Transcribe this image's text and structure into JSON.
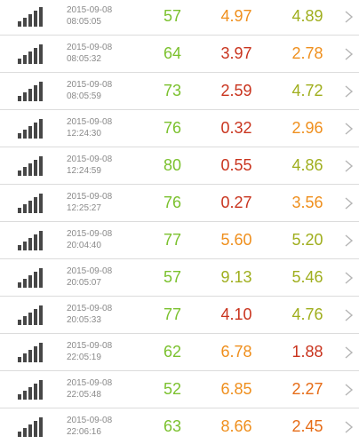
{
  "colors": {
    "green": "#7bc12e",
    "olive": "#9fae1d",
    "orange": "#ef8f1d",
    "dark_orange": "#e66c17",
    "red": "#c9341e"
  },
  "icons": {
    "signal": "signal-strength-icon",
    "chevron": "chevron-right-icon"
  },
  "rows": [
    {
      "date": "2015-09-08",
      "time": "08:05:05",
      "v1": "57",
      "v1_color": "green",
      "v2": "4.97",
      "v2_color": "orange",
      "v3": "4.89",
      "v3_color": "olive"
    },
    {
      "date": "2015-09-08",
      "time": "08:05:32",
      "v1": "64",
      "v1_color": "green",
      "v2": "3.97",
      "v2_color": "red",
      "v3": "2.78",
      "v3_color": "orange"
    },
    {
      "date": "2015-09-08",
      "time": "08:05:59",
      "v1": "73",
      "v1_color": "green",
      "v2": "2.59",
      "v2_color": "red",
      "v3": "4.72",
      "v3_color": "olive"
    },
    {
      "date": "2015-09-08",
      "time": "12:24:30",
      "v1": "76",
      "v1_color": "green",
      "v2": "0.32",
      "v2_color": "red",
      "v3": "2.96",
      "v3_color": "orange"
    },
    {
      "date": "2015-09-08",
      "time": "12:24:59",
      "v1": "80",
      "v1_color": "green",
      "v2": "0.55",
      "v2_color": "red",
      "v3": "4.86",
      "v3_color": "olive"
    },
    {
      "date": "2015-09-08",
      "time": "12:25:27",
      "v1": "76",
      "v1_color": "green",
      "v2": "0.27",
      "v2_color": "red",
      "v3": "3.56",
      "v3_color": "orange"
    },
    {
      "date": "2015-09-08",
      "time": "20:04:40",
      "v1": "77",
      "v1_color": "green",
      "v2": "5.60",
      "v2_color": "orange",
      "v3": "5.20",
      "v3_color": "olive"
    },
    {
      "date": "2015-09-08",
      "time": "20:05:07",
      "v1": "57",
      "v1_color": "green",
      "v2": "9.13",
      "v2_color": "olive",
      "v3": "5.46",
      "v3_color": "olive"
    },
    {
      "date": "2015-09-08",
      "time": "20:05:33",
      "v1": "77",
      "v1_color": "green",
      "v2": "4.10",
      "v2_color": "red",
      "v3": "4.76",
      "v3_color": "olive"
    },
    {
      "date": "2015-09-08",
      "time": "22:05:19",
      "v1": "62",
      "v1_color": "green",
      "v2": "6.78",
      "v2_color": "orange",
      "v3": "1.88",
      "v3_color": "red"
    },
    {
      "date": "2015-09-08",
      "time": "22:05:48",
      "v1": "52",
      "v1_color": "green",
      "v2": "6.85",
      "v2_color": "orange",
      "v3": "2.27",
      "v3_color": "dark_orange"
    },
    {
      "date": "2015-09-08",
      "time": "22:06:16",
      "v1": "63",
      "v1_color": "green",
      "v2": "8.66",
      "v2_color": "orange",
      "v3": "2.45",
      "v3_color": "dark_orange"
    }
  ]
}
